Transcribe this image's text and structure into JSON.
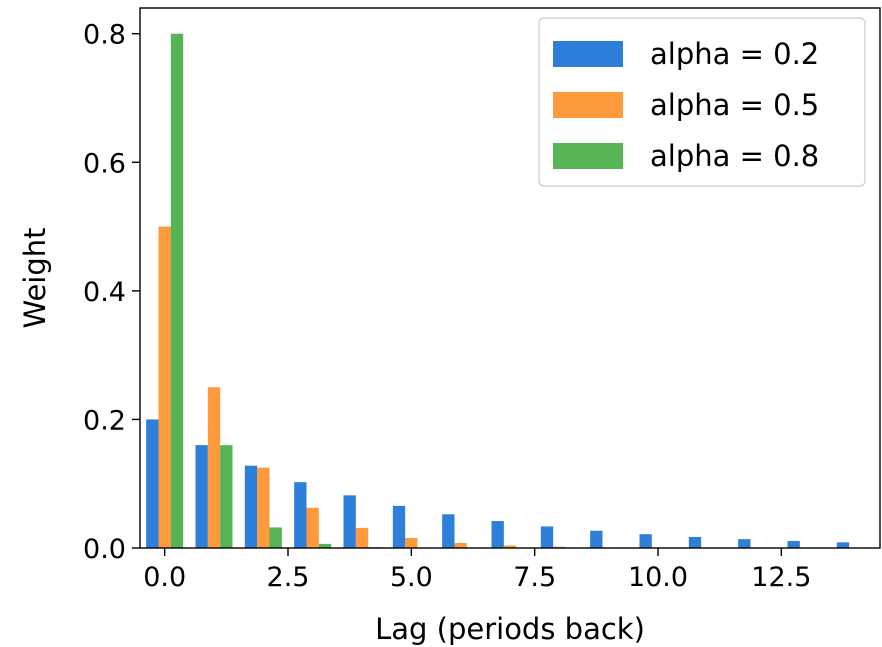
{
  "chart_data": {
    "type": "bar",
    "title": "",
    "xlabel": "Lag (periods back)",
    "ylabel": "Weight",
    "xlim": [
      -0.5,
      14.5
    ],
    "ylim": [
      0,
      0.84
    ],
    "xticks": [
      "0.0",
      "2.5",
      "5.0",
      "7.5",
      "10.0",
      "12.5"
    ],
    "yticks": [
      "0.0",
      "0.2",
      "0.4",
      "0.6",
      "0.8"
    ],
    "grid": false,
    "legend_position": "top-right",
    "bar_width": 0.25,
    "lags": [
      0,
      1,
      2,
      3,
      4,
      5,
      6,
      7,
      8,
      9,
      10,
      11,
      12,
      13,
      14
    ],
    "series": [
      {
        "name": "alpha = 0.2",
        "color": "#2e7fd9",
        "offset": -0.25,
        "values": [
          0.2,
          0.16,
          0.128,
          0.1024,
          0.08192,
          0.065536,
          0.052429,
          0.041943,
          0.033554,
          0.026844,
          0.021475,
          0.01718,
          0.013744,
          0.010995,
          0.008796
        ]
      },
      {
        "name": "alpha = 0.5",
        "color": "#ff9a3c",
        "offset": 0,
        "values": [
          0.5,
          0.25,
          0.125,
          0.0625,
          0.03125,
          0.015625,
          0.0078125,
          0.0039063,
          0.0019531,
          0.0009766,
          0.0004883,
          0.0002441,
          0.0001221,
          6.1e-05,
          3.05e-05
        ]
      },
      {
        "name": "alpha = 0.8",
        "color": "#56b356",
        "offset": 0.25,
        "values": [
          0.8,
          0.16,
          0.032,
          0.0064,
          0.00128,
          0.000256,
          5.12e-05,
          1.02e-05,
          2e-06,
          4e-07,
          1e-07,
          0,
          0,
          0,
          0
        ]
      }
    ]
  }
}
